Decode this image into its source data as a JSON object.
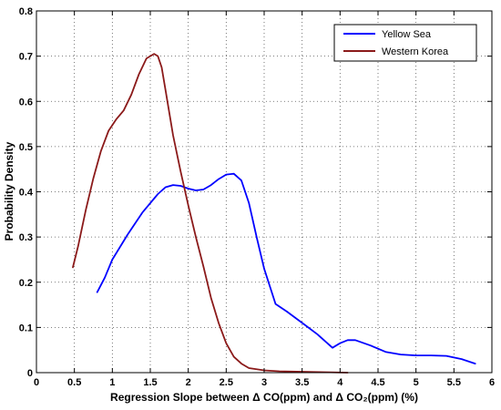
{
  "chart_data": {
    "type": "line",
    "title": "",
    "xlabel": "Regression Slope between Δ CO(ppm) and Δ CO₂(ppm) (%)",
    "ylabel": "Probability Density",
    "xlim": [
      0,
      6
    ],
    "ylim": [
      0,
      0.8
    ],
    "x_ticks": [
      0,
      0.5,
      1,
      1.5,
      2,
      2.5,
      3,
      3.5,
      4,
      4.5,
      5,
      5.5,
      6
    ],
    "x_tick_labels": [
      "0",
      "0.5",
      "1",
      "1.5",
      "2",
      "2.5",
      "3",
      "3.5",
      "4",
      "4.5",
      "5",
      "5.5",
      "6"
    ],
    "y_ticks": [
      0,
      0.1,
      0.2,
      0.3,
      0.4,
      0.5,
      0.6,
      0.7,
      0.8
    ],
    "y_tick_labels": [
      "0",
      "0.1",
      "0.2",
      "0.3",
      "0.4",
      "0.5",
      "0.6",
      "0.7",
      "0.8"
    ],
    "grid": true,
    "legend_position": "top-right",
    "series": [
      {
        "name": "Yellow Sea",
        "color": "#0000ff",
        "x": [
          0.8,
          0.9,
          1.0,
          1.2,
          1.4,
          1.6,
          1.7,
          1.8,
          1.9,
          2.0,
          2.1,
          2.2,
          2.3,
          2.4,
          2.5,
          2.6,
          2.7,
          2.8,
          2.9,
          3.0,
          3.15,
          3.3,
          3.5,
          3.7,
          3.9,
          4.0,
          4.1,
          4.2,
          4.4,
          4.6,
          4.8,
          5.0,
          5.2,
          5.4,
          5.6,
          5.78
        ],
        "y": [
          0.178,
          0.21,
          0.25,
          0.305,
          0.355,
          0.395,
          0.41,
          0.415,
          0.413,
          0.407,
          0.403,
          0.405,
          0.415,
          0.428,
          0.438,
          0.44,
          0.425,
          0.375,
          0.3,
          0.23,
          0.152,
          0.135,
          0.11,
          0.085,
          0.055,
          0.065,
          0.072,
          0.072,
          0.06,
          0.046,
          0.04,
          0.038,
          0.038,
          0.037,
          0.03,
          0.02
        ]
      },
      {
        "name": "Western Korea",
        "color": "#8b1a1a",
        "x": [
          0.48,
          0.55,
          0.65,
          0.75,
          0.85,
          0.95,
          1.05,
          1.15,
          1.25,
          1.35,
          1.45,
          1.55,
          1.6,
          1.65,
          1.7,
          1.8,
          1.9,
          2.0,
          2.1,
          2.2,
          2.3,
          2.4,
          2.5,
          2.6,
          2.7,
          2.8,
          3.0,
          3.2,
          3.5,
          3.8,
          4.1
        ],
        "y": [
          0.233,
          0.28,
          0.36,
          0.43,
          0.49,
          0.535,
          0.56,
          0.58,
          0.615,
          0.66,
          0.695,
          0.705,
          0.7,
          0.675,
          0.625,
          0.525,
          0.445,
          0.37,
          0.3,
          0.235,
          0.165,
          0.11,
          0.065,
          0.035,
          0.02,
          0.01,
          0.005,
          0.003,
          0.002,
          0.001,
          0.0
        ]
      }
    ]
  }
}
